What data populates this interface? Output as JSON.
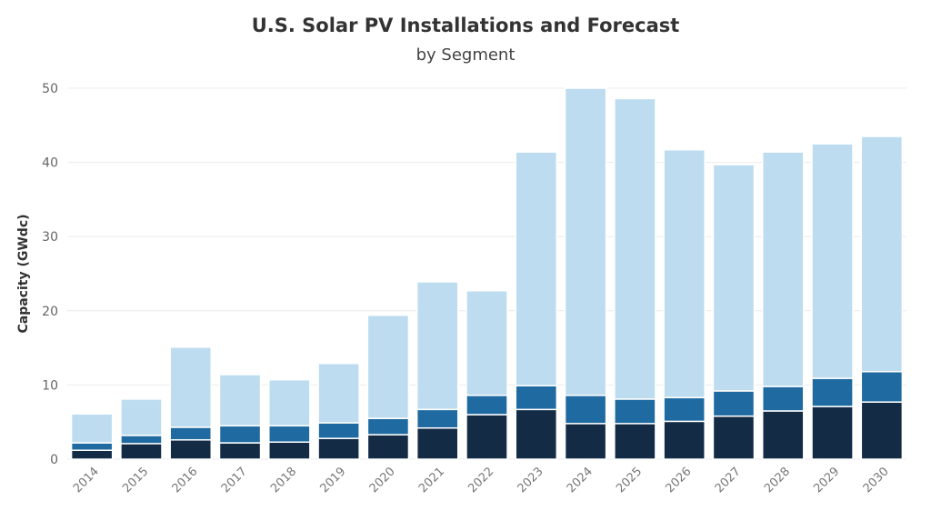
{
  "chart_data": {
    "type": "bar",
    "stacked": true,
    "title": "U.S. Solar PV Installations and Forecast",
    "subtitle": "by Segment",
    "xlabel": "",
    "ylabel": "Capacity (GWdc)",
    "ylim": [
      0,
      50
    ],
    "yticks": [
      0,
      10,
      20,
      30,
      40,
      50
    ],
    "grid": true,
    "categories": [
      "2014",
      "2015",
      "2016",
      "2017",
      "2018",
      "2019",
      "2020",
      "2021",
      "2022",
      "2023",
      "2024",
      "2025",
      "2026",
      "2027",
      "2028",
      "2029",
      "2030"
    ],
    "series": [
      {
        "color": "#132b45",
        "values": [
          1.2,
          2.1,
          2.6,
          2.2,
          2.3,
          2.8,
          3.3,
          4.2,
          6.0,
          6.7,
          4.8,
          4.8,
          5.1,
          5.8,
          6.5,
          7.1,
          7.7
        ]
      },
      {
        "color": "#1f6aa0",
        "values": [
          1.0,
          1.1,
          1.7,
          2.3,
          2.2,
          2.1,
          2.2,
          2.5,
          2.6,
          3.2,
          3.8,
          3.3,
          3.2,
          3.4,
          3.3,
          3.8,
          4.1
        ]
      },
      {
        "color": "#bddcef",
        "values": [
          3.9,
          4.9,
          10.8,
          6.9,
          6.2,
          8.0,
          13.9,
          17.2,
          14.1,
          31.5,
          41.4,
          40.5,
          33.4,
          30.5,
          31.6,
          31.6,
          31.7
        ]
      }
    ]
  }
}
